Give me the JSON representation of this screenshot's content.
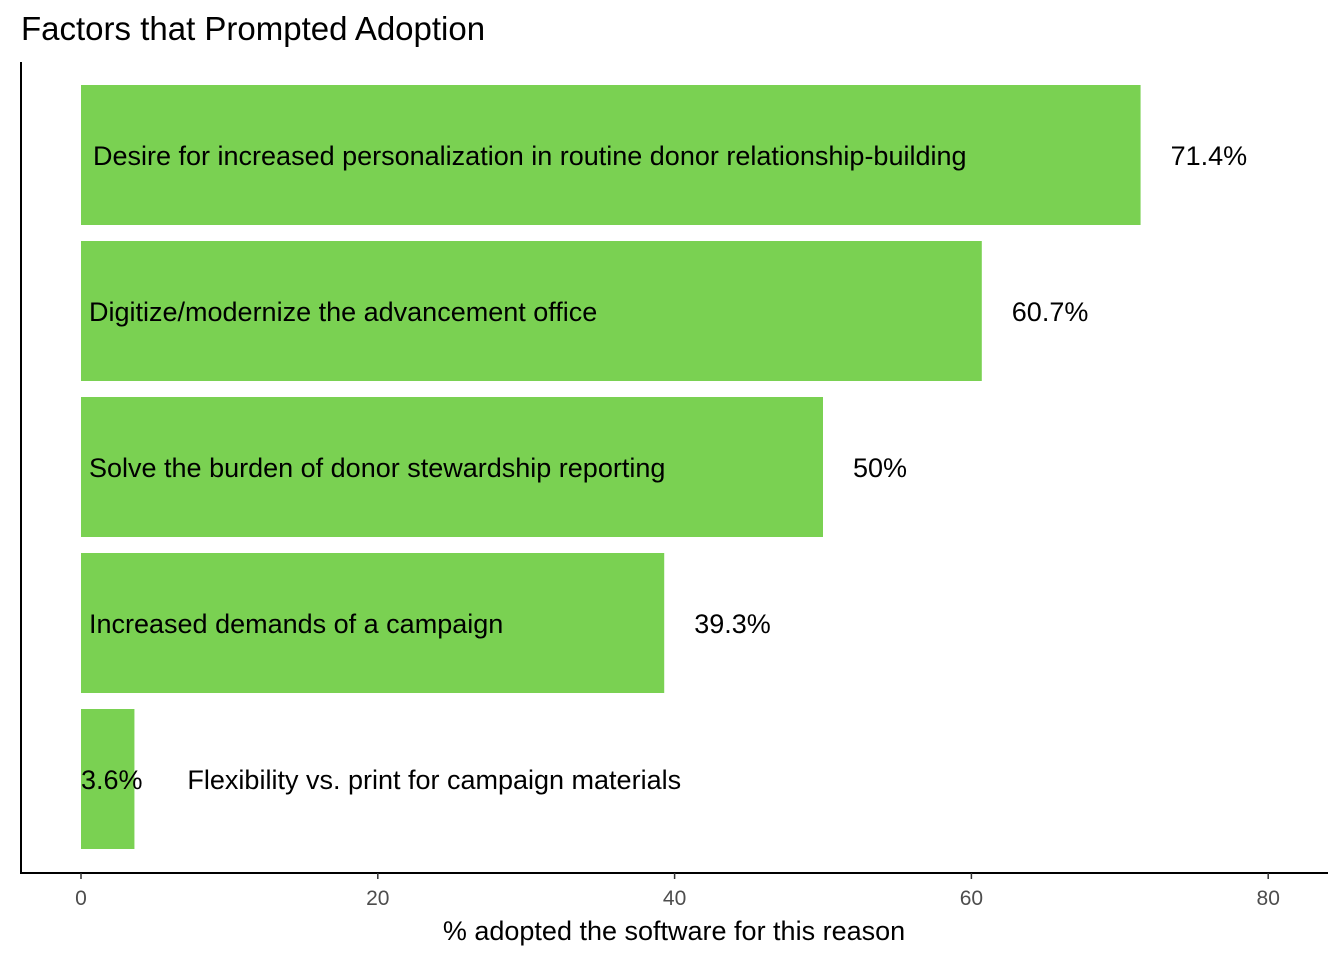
{
  "chart_data": {
    "type": "bar",
    "orientation": "horizontal",
    "title": "Factors that Prompted Adoption",
    "xlabel": "% adopted the software for this reason",
    "ylabel": "",
    "xlim": [
      0,
      80
    ],
    "x_ticks": [
      0,
      20,
      40,
      60,
      80
    ],
    "categories": [
      "Desire for increased personalization in routine donor relationship-building",
      "Digitize/modernize the advancement office",
      "Solve the burden of donor stewardship reporting",
      "Increased demands of a campaign",
      "Flexibility vs. print for campaign materials"
    ],
    "values": [
      71.4,
      60.7,
      50,
      39.3,
      3.6
    ],
    "value_labels": [
      "71.4%",
      "60.7%",
      "50%",
      "39.3%",
      "3.6%"
    ],
    "bar_color": "#7ad152",
    "grid": false,
    "legend": "none"
  }
}
